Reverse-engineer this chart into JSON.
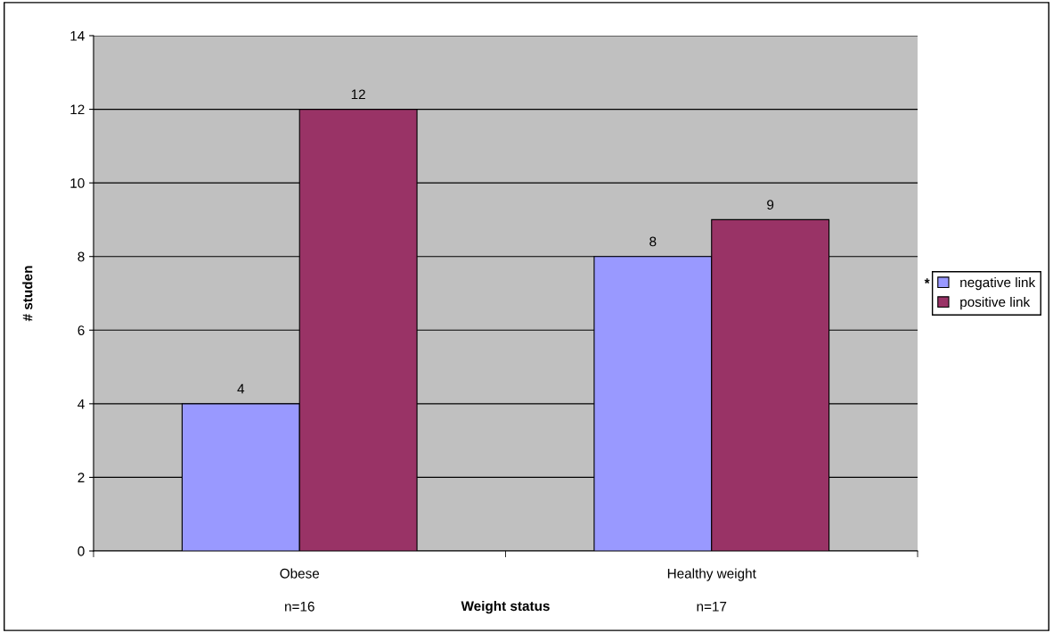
{
  "chart_data": {
    "type": "bar",
    "xlabel": "Weight status",
    "ylabel": "# studen",
    "categories": [
      "Obese",
      "Healthy weight"
    ],
    "series": [
      {
        "name": "negative link",
        "color": "#9999ff",
        "values": [
          4,
          8
        ]
      },
      {
        "name": "positive link",
        "color": "#993366",
        "values": [
          12,
          9
        ]
      }
    ],
    "ylim": [
      0,
      14
    ],
    "yticks": [
      0,
      2,
      4,
      6,
      8,
      10,
      12,
      14
    ],
    "grid": "y",
    "legend": "right",
    "data_labels": true,
    "annotations": [
      "n=16",
      "n=17",
      "*"
    ]
  }
}
